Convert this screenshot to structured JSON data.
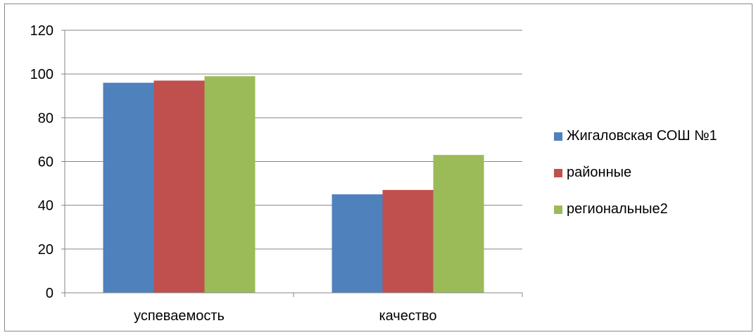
{
  "chart_data": {
    "type": "bar",
    "categories": [
      "успеваемость",
      "качество"
    ],
    "series": [
      {
        "name": "Жигаловская СОШ №1",
        "values": [
          96,
          45
        ],
        "color": "#4F81BD"
      },
      {
        "name": "районные",
        "values": [
          97,
          47
        ],
        "color": "#C0504D"
      },
      {
        "name": "региональные2",
        "values": [
          99,
          63
        ],
        "color": "#9BBB59"
      }
    ],
    "yticks": [
      "0",
      "20",
      "40",
      "60",
      "80",
      "100",
      "120"
    ],
    "ylim": [
      0,
      120
    ],
    "grid": true,
    "legend_position": "right"
  }
}
